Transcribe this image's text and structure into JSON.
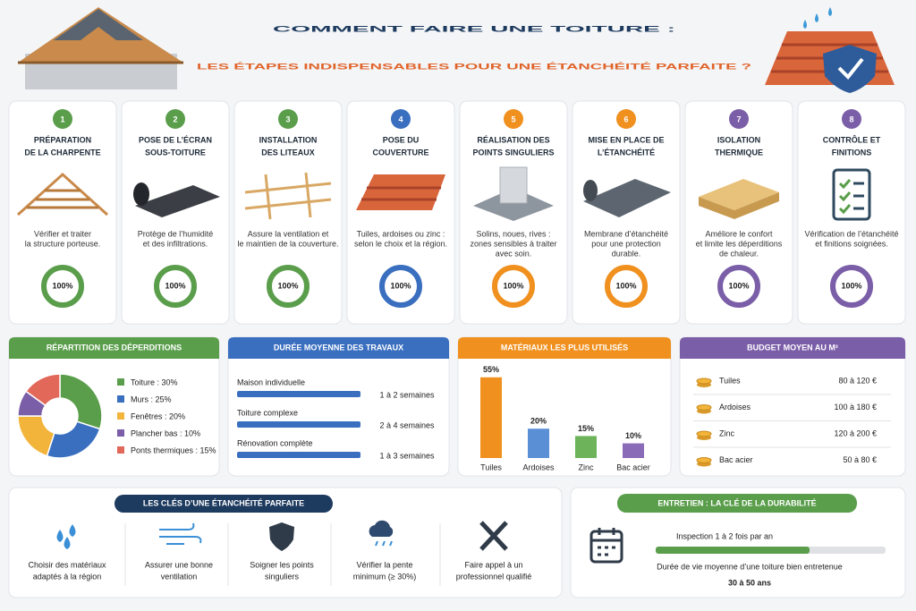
{
  "header": {
    "title": "COMMENT FAIRE UNE TOITURE :",
    "subtitle": "LES ÉTAPES INDISPENSABLES POUR UNE ÉTANCHÉITÉ PARFAITE ?"
  },
  "steps": [
    {
      "number": 1,
      "title": [
        "PRÉPARATION",
        "DE LA CHARPENTE"
      ],
      "description": [
        "Vérifier et traiter",
        "la structure porteuse."
      ],
      "color": "#5a9e4b",
      "progress": 100,
      "progress_label": "100%"
    },
    {
      "number": 2,
      "title": [
        "POSE DE L’ÉCRAN",
        "SOUS-TOITURE"
      ],
      "description": [
        "Protège de l’humidité",
        "et des infiltrations."
      ],
      "color": "#5a9e4b",
      "progress": 100,
      "progress_label": "100%"
    },
    {
      "number": 3,
      "title": [
        "INSTALLATION",
        "DES LITEAUX"
      ],
      "description": [
        "Assure la ventilation et",
        "le maintien de la couverture."
      ],
      "color": "#5a9e4b",
      "progress": 100,
      "progress_label": "100%"
    },
    {
      "number": 4,
      "title": [
        "POSE DU",
        "COUVERTURE"
      ],
      "description": [
        "Tuiles, ardoises ou zinc :",
        "selon le choix et la région."
      ],
      "color": "#3a6fc0",
      "progress": 100,
      "progress_label": "100%"
    },
    {
      "number": 5,
      "title": [
        "RÉALISATION DES",
        "POINTS SINGULIERS"
      ],
      "description": [
        "Solins, noues, rives :",
        "zones sensibles à traiter",
        "avec soin."
      ],
      "color": "#f0901e",
      "progress": 100,
      "progress_label": "100%"
    },
    {
      "number": 6,
      "title": [
        "MISE EN PLACE DE",
        "L’ÉTANCHÉITÉ"
      ],
      "description": [
        "Membrane d’étanchéité",
        "pour une protection",
        "durable."
      ],
      "color": "#f0901e",
      "progress": 100,
      "progress_label": "100%"
    },
    {
      "number": 7,
      "title": [
        "ISOLATION",
        "THERMIQUE"
      ],
      "description": [
        "Améliore le confort",
        "et limite les déperditions",
        "de chaleur."
      ],
      "color": "#7b5ea8",
      "progress": 100,
      "progress_label": "100%"
    },
    {
      "number": 8,
      "title": [
        "CONTRÔLE ET",
        "FINITIONS"
      ],
      "description": [
        "Vérification de l’étanchéité",
        "et finitions soignées."
      ],
      "color": "#7b5ea8",
      "progress": 100,
      "progress_label": "100%"
    }
  ],
  "losses": {
    "title": "RÉPARTITION DES DÉPERDITIONS",
    "chart_data": {
      "type": "pie",
      "categories": [
        "Toiture : 30%",
        "Murs : 25%",
        "Fenêtres : 20%",
        "Plancher bas : 10%",
        "Ponts thermiques : 15%"
      ],
      "values": [
        30,
        25,
        20,
        10,
        15
      ],
      "colors": [
        "#5a9e4b",
        "#3a6fc0",
        "#f2b43a",
        "#7b5ea8",
        "#e2685a"
      ]
    }
  },
  "durations": {
    "title": "DURÉE MOYENNE DES TRAVAUX",
    "rows": [
      {
        "label": "Maison individuelle",
        "duration": "1 à 2 semaines"
      },
      {
        "label": "Toiture complexe",
        "duration": "2 à 4 semaines"
      },
      {
        "label": "Rénovation complète",
        "duration": "1 à 3 semaines"
      }
    ]
  },
  "materials": {
    "title": "MATÉRIAUX LES PLUS UTILISÉS",
    "chart_data": {
      "type": "bar",
      "categories": [
        "Tuiles",
        "Ardoises",
        "Zinc",
        "Bac acier"
      ],
      "values": [
        55,
        20,
        15,
        10
      ],
      "value_labels": [
        "55%",
        "20%",
        "15%",
        "10%"
      ],
      "colors": [
        "#f0901e",
        "#5a8fd6",
        "#6db35a",
        "#8a6bb8"
      ]
    }
  },
  "budget": {
    "title": "BUDGET MOYEN AU M²",
    "rows": [
      {
        "material": "Tuiles",
        "price": "80 à 120 €"
      },
      {
        "material": "Ardoises",
        "price": "100 à 180 €"
      },
      {
        "material": "Zinc",
        "price": "120 à 200 €"
      },
      {
        "material": "Bac acier",
        "price": "50 à 80 €"
      }
    ]
  },
  "keys": {
    "title": "LES CLÉS D’UNE ÉTANCHÉITÉ PARFAITE",
    "items": [
      [
        "Choisir des matériaux",
        "adaptés à la région"
      ],
      [
        "Assurer une bonne",
        "ventilation"
      ],
      [
        "Soigner les points",
        "singuliers"
      ],
      [
        "Vérifier la pente",
        "minimum (≥ 30%)"
      ],
      [
        "Faire appel à un",
        "professionnel qualifié"
      ]
    ]
  },
  "maintenance": {
    "title": "ENTRETIEN : LA CLÉ DE LA DURABILITÉ",
    "inspection": "Inspection 1 à 2 fois par an",
    "lifespan_caption": "Durée de vie moyenne d’une toiture bien entretenue",
    "lifespan": "30 à 50 ans"
  }
}
